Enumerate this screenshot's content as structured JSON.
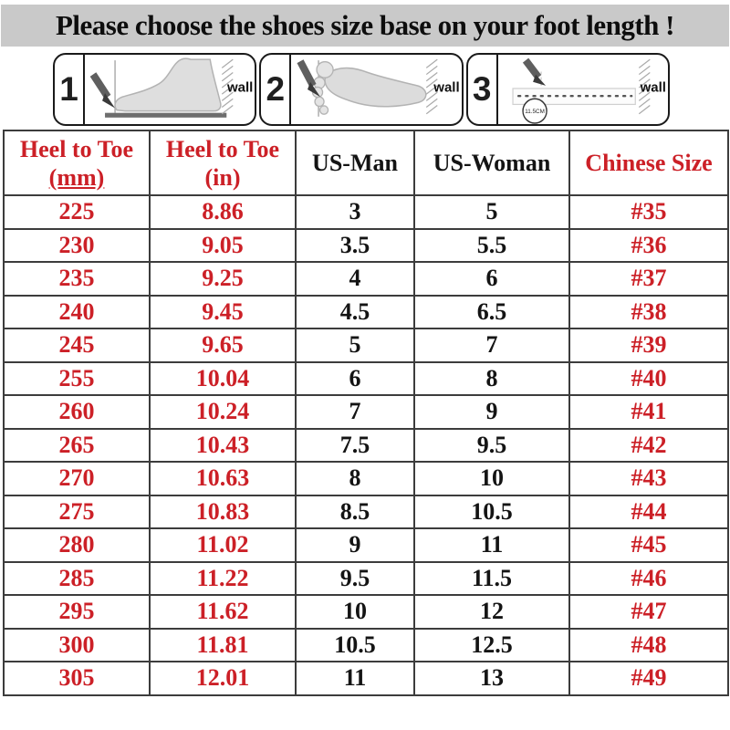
{
  "banner": {
    "title": "Please choose the shoes size base on your foot length !"
  },
  "panels": [
    {
      "number": "1",
      "wall_label": "wall",
      "illustration": "foot-side-view-against-wall"
    },
    {
      "number": "2",
      "wall_label": "wall",
      "illustration": "foot-top-view-against-wall"
    },
    {
      "number": "3",
      "wall_label": "wall",
      "circle_label": "11.5CM",
      "illustration": "ruler-measure-to-wall"
    }
  ],
  "chart_data": {
    "type": "table",
    "title": "Please choose the shoes size base on your foot length !",
    "columns": [
      {
        "line1": "Heel to Toe",
        "line2": "(mm)"
      },
      {
        "line1": "Heel to Toe",
        "line2": "(in)"
      },
      {
        "line1": "US-Man"
      },
      {
        "line1": "US-Woman"
      },
      {
        "line1": "Chinese Size"
      }
    ],
    "rows": [
      [
        "225",
        "8.86",
        "3",
        "5",
        "#35"
      ],
      [
        "230",
        "9.05",
        "3.5",
        "5.5",
        "#36"
      ],
      [
        "235",
        "9.25",
        "4",
        "6",
        "#37"
      ],
      [
        "240",
        "9.45",
        "4.5",
        "6.5",
        "#38"
      ],
      [
        "245",
        "9.65",
        "5",
        "7",
        "#39"
      ],
      [
        "255",
        "10.04",
        "6",
        "8",
        "#40"
      ],
      [
        "260",
        "10.24",
        "7",
        "9",
        "#41"
      ],
      [
        "265",
        "10.43",
        "7.5",
        "9.5",
        "#42"
      ],
      [
        "270",
        "10.63",
        "8",
        "10",
        "#43"
      ],
      [
        "275",
        "10.83",
        "8.5",
        "10.5",
        "#44"
      ],
      [
        "280",
        "11.02",
        "9",
        "11",
        "#45"
      ],
      [
        "285",
        "11.22",
        "9.5",
        "11.5",
        "#46"
      ],
      [
        "295",
        "11.62",
        "10",
        "12",
        "#47"
      ],
      [
        "300",
        "11.81",
        "10.5",
        "12.5",
        "#48"
      ],
      [
        "305",
        "12.01",
        "11",
        "13",
        "#49"
      ]
    ]
  },
  "style": {
    "red_columns": [
      0,
      1,
      4
    ],
    "accent_red": "#cc2027",
    "text_black": "#141414",
    "banner_bg": "#c9c9c9"
  }
}
